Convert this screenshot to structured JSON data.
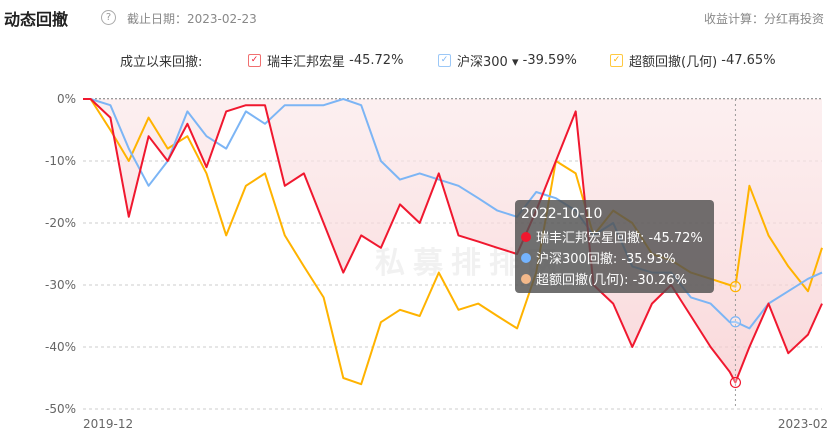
{
  "header": {
    "title": "动态回撤",
    "help_icon": "?",
    "cutoff_date": "截止日期：2023-02-23",
    "calc_method": "收益计算：分红再投资"
  },
  "legend": {
    "label": "成立以来回撤:",
    "items": [
      {
        "name": "瑞丰汇邦宏星",
        "value": "-45.72%",
        "color": "#f0182f",
        "checked": true
      },
      {
        "name": "沪深300 ▾",
        "value": "-39.59%",
        "color": "#7cb5f5",
        "checked": true
      },
      {
        "name": "超额回撤(几何)",
        "value": "-47.65%",
        "color": "#ffb300",
        "checked": true
      }
    ]
  },
  "watermark": "私募排排网",
  "tooltip": {
    "date": "2022-10-10",
    "rows": [
      {
        "text": "瑞丰汇邦宏星回撤: -45.72%",
        "color": "#f0182f"
      },
      {
        "text": "沪深300回撤: -35.93%",
        "color": "#74b4ff"
      },
      {
        "text": "超额回撤(几何): -30.26%",
        "color": "#f2b88a"
      }
    ]
  },
  "chart_data": {
    "type": "line",
    "xlabel": "",
    "ylabel": "",
    "x_tick_labels": [
      "2019-12",
      "2023-02"
    ],
    "y_tick_labels": [
      "0%",
      "-10%",
      "-20%",
      "-30%",
      "-40%",
      "-50%"
    ],
    "ylim": [
      -50,
      0
    ],
    "xlim": [
      "2019-12-20",
      "2023-02-23"
    ],
    "grid": true,
    "x": [
      "2019-12-20",
      "2020-01-01",
      "2020-02-01",
      "2020-03-01",
      "2020-04-01",
      "2020-05-01",
      "2020-06-01",
      "2020-07-01",
      "2020-08-01",
      "2020-09-01",
      "2020-10-01",
      "2020-11-01",
      "2020-12-01",
      "2021-01-01",
      "2021-02-01",
      "2021-03-01",
      "2021-04-01",
      "2021-05-01",
      "2021-06-01",
      "2021-07-01",
      "2021-08-01",
      "2021-09-01",
      "2021-10-01",
      "2021-11-01",
      "2021-12-01",
      "2022-01-01",
      "2022-02-01",
      "2022-03-01",
      "2022-04-01",
      "2022-05-01",
      "2022-06-01",
      "2022-07-01",
      "2022-08-01",
      "2022-09-01",
      "2022-10-01",
      "2022-10-10",
      "2022-11-01",
      "2022-12-01",
      "2023-01-01",
      "2023-02-01",
      "2023-02-23"
    ],
    "series": [
      {
        "name": "瑞丰汇邦宏星",
        "color": "#f0182f",
        "fill": true,
        "values": [
          0,
          0,
          -3,
          -19,
          -6,
          -10,
          -4,
          -11,
          -2,
          -1,
          -1,
          -14,
          -12,
          -20,
          -28,
          -22,
          -24,
          -17,
          -20,
          -12,
          -22,
          -23,
          -24,
          -25,
          -18,
          -10,
          -2,
          -30,
          -33,
          -40,
          -33,
          -30,
          -35,
          -40,
          -44,
          -45.72,
          -40,
          -33,
          -41,
          -38,
          -33
        ]
      },
      {
        "name": "沪深300",
        "color": "#7cb5f5",
        "values": [
          0,
          0,
          -1,
          -8,
          -14,
          -10,
          -2,
          -6,
          -8,
          -2,
          -4,
          -1,
          -1,
          -1,
          0,
          -1,
          -10,
          -13,
          -12,
          -13,
          -14,
          -16,
          -18,
          -19,
          -15,
          -16,
          -18,
          -22,
          -20,
          -27,
          -28,
          -28,
          -32,
          -33,
          -36,
          -35.93,
          -37,
          -33,
          -31,
          -29,
          -28
        ]
      },
      {
        "name": "超额回撤(几何)",
        "color": "#ffb300",
        "values": [
          0,
          0,
          -5,
          -10,
          -3,
          -8,
          -6,
          -12,
          -22,
          -14,
          -12,
          -22,
          -27,
          -32,
          -45,
          -46,
          -36,
          -34,
          -35,
          -28,
          -34,
          -33,
          -35,
          -37,
          -28,
          -10,
          -12,
          -22,
          -18,
          -20,
          -25,
          -26,
          -28,
          -29,
          -30,
          -30.26,
          -14,
          -22,
          -27,
          -31,
          -24
        ]
      }
    ],
    "cursor_date": "2022-10-10"
  }
}
